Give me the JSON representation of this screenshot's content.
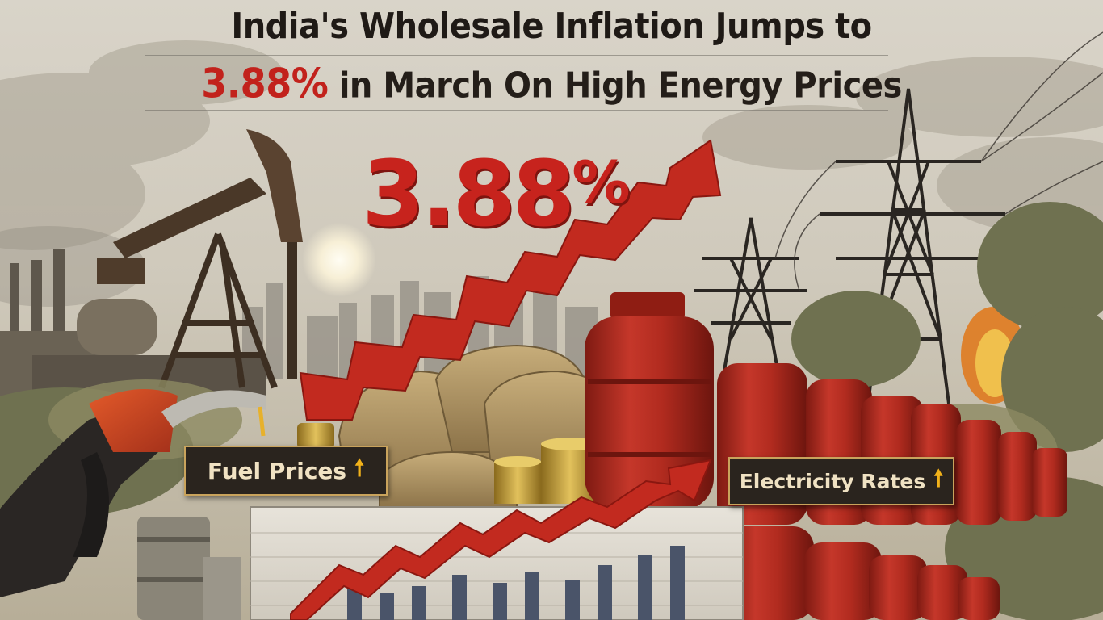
{
  "headline": {
    "line1": "India's Wholesale Inflation Jumps to",
    "line2_accent": "3.88%",
    "line2_rest": " in March On High Energy Prices"
  },
  "feature_figure": {
    "value": "3.88",
    "unit": "%"
  },
  "labels": {
    "fuel": "Fuel Prices",
    "electricity": "Electricity Rates",
    "arrow_glyph": "🠕"
  },
  "colors": {
    "accent_red": "#c7231d",
    "label_bg": "#2a241e",
    "label_border": "#c9a35c",
    "arrow_yellow": "#f2b21a",
    "cylinder_red": "#b8291e"
  },
  "icons": [
    "oil-pump-icon",
    "fuel-nozzle-icon",
    "power-pylon-icon",
    "gas-cylinder-icon",
    "coin-stack-icon",
    "grain-sack-icon",
    "trend-arrow-icon"
  ]
}
